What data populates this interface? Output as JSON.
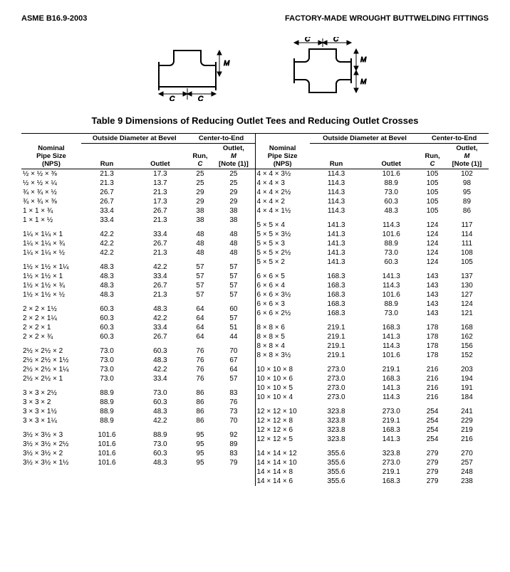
{
  "header": {
    "left": "ASME B16.9-2003",
    "right": "FACTORY-MADE WROUGHT BUTTWELDING FITTINGS"
  },
  "table_title": "Table 9   Dimensions of Reducing Outlet Tees and Reducing Outlet Crosses",
  "column_headers": {
    "nominal": "Nominal Pipe Size (NPS)",
    "od_group": "Outside Diameter at Bevel",
    "cte_group": "Center-to-End",
    "run_od": "Run",
    "outlet_od": "Outlet",
    "run_c": "Run, C",
    "outlet_m": "Outlet, M [Note (1)]"
  },
  "left_groups": [
    [
      {
        "nps": "½ × ½ × ⅜",
        "run": "21.3",
        "out": "17.3",
        "c": "25",
        "m": "25"
      },
      {
        "nps": "½ × ½ × ¼",
        "run": "21.3",
        "out": "13.7",
        "c": "25",
        "m": "25"
      },
      {
        "nps": "¾ × ¾ × ½",
        "run": "26.7",
        "out": "21.3",
        "c": "29",
        "m": "29"
      },
      {
        "nps": "¾ × ¾ × ⅜",
        "run": "26.7",
        "out": "17.3",
        "c": "29",
        "m": "29"
      },
      {
        "nps": "1 × 1 × ¾",
        "run": "33.4",
        "out": "26.7",
        "c": "38",
        "m": "38"
      },
      {
        "nps": "1 × 1 × ½",
        "run": "33.4",
        "out": "21.3",
        "c": "38",
        "m": "38"
      }
    ],
    [
      {
        "nps": "1¼ × 1¼ × 1",
        "run": "42.2",
        "out": "33.4",
        "c": "48",
        "m": "48"
      },
      {
        "nps": "1¼ × 1¼ × ¾",
        "run": "42.2",
        "out": "26.7",
        "c": "48",
        "m": "48"
      },
      {
        "nps": "1¼ × 1¼ × ½",
        "run": "42.2",
        "out": "21.3",
        "c": "48",
        "m": "48"
      }
    ],
    [
      {
        "nps": "1½ × 1½ × 1¼",
        "run": "48.3",
        "out": "42.2",
        "c": "57",
        "m": "57"
      },
      {
        "nps": "1½ × 1½ × 1",
        "run": "48.3",
        "out": "33.4",
        "c": "57",
        "m": "57"
      },
      {
        "nps": "1½ × 1½ × ¾",
        "run": "48.3",
        "out": "26.7",
        "c": "57",
        "m": "57"
      },
      {
        "nps": "1½ × 1½ × ½",
        "run": "48.3",
        "out": "21.3",
        "c": "57",
        "m": "57"
      }
    ],
    [
      {
        "nps": "2 × 2 × 1½",
        "run": "60.3",
        "out": "48.3",
        "c": "64",
        "m": "60"
      },
      {
        "nps": "2 × 2 × 1¼",
        "run": "60.3",
        "out": "42.2",
        "c": "64",
        "m": "57"
      },
      {
        "nps": "2 × 2 × 1",
        "run": "60.3",
        "out": "33.4",
        "c": "64",
        "m": "51"
      },
      {
        "nps": "2 × 2 × ¾",
        "run": "60.3",
        "out": "26.7",
        "c": "64",
        "m": "44"
      }
    ],
    [
      {
        "nps": "2½ × 2½ × 2",
        "run": "73.0",
        "out": "60.3",
        "c": "76",
        "m": "70"
      },
      {
        "nps": "2½ × 2½ × 1½",
        "run": "73.0",
        "out": "48.3",
        "c": "76",
        "m": "67"
      },
      {
        "nps": "2½ × 2½ × 1¼",
        "run": "73.0",
        "out": "42.2",
        "c": "76",
        "m": "64"
      },
      {
        "nps": "2½ × 2½ × 1",
        "run": "73.0",
        "out": "33.4",
        "c": "76",
        "m": "57"
      }
    ],
    [
      {
        "nps": "3 × 3 × 2½",
        "run": "88.9",
        "out": "73.0",
        "c": "86",
        "m": "83"
      },
      {
        "nps": "3 × 3 × 2",
        "run": "88.9",
        "out": "60.3",
        "c": "86",
        "m": "76"
      },
      {
        "nps": "3 × 3 × 1½",
        "run": "88.9",
        "out": "48.3",
        "c": "86",
        "m": "73"
      },
      {
        "nps": "3 × 3 × 1¼",
        "run": "88.9",
        "out": "42.2",
        "c": "86",
        "m": "70"
      }
    ],
    [
      {
        "nps": "3½ × 3½ × 3",
        "run": "101.6",
        "out": "88.9",
        "c": "95",
        "m": "92"
      },
      {
        "nps": "3½ × 3½ × 2½",
        "run": "101.6",
        "out": "73.0",
        "c": "95",
        "m": "89"
      },
      {
        "nps": "3½ × 3½ × 2",
        "run": "101.6",
        "out": "60.3",
        "c": "95",
        "m": "83"
      },
      {
        "nps": "3½ × 3½ × 1½",
        "run": "101.6",
        "out": "48.3",
        "c": "95",
        "m": "79"
      }
    ]
  ],
  "right_groups": [
    [
      {
        "nps": "4 × 4 × 3½",
        "run": "114.3",
        "out": "101.6",
        "c": "105",
        "m": "102"
      },
      {
        "nps": "4 × 4 × 3",
        "run": "114.3",
        "out": "88.9",
        "c": "105",
        "m": "98"
      },
      {
        "nps": "4 × 4 × 2½",
        "run": "114.3",
        "out": "73.0",
        "c": "105",
        "m": "95"
      },
      {
        "nps": "4 × 4 × 2",
        "run": "114.3",
        "out": "60.3",
        "c": "105",
        "m": "89"
      },
      {
        "nps": "4 × 4 × 1½",
        "run": "114.3",
        "out": "48.3",
        "c": "105",
        "m": "86"
      }
    ],
    [
      {
        "nps": "5 × 5 × 4",
        "run": "141.3",
        "out": "114.3",
        "c": "124",
        "m": "117"
      },
      {
        "nps": "5 × 5 × 3½",
        "run": "141.3",
        "out": "101.6",
        "c": "124",
        "m": "114"
      },
      {
        "nps": "5 × 5 × 3",
        "run": "141.3",
        "out": "88.9",
        "c": "124",
        "m": "111"
      },
      {
        "nps": "5 × 5 × 2½",
        "run": "141.3",
        "out": "73.0",
        "c": "124",
        "m": "108"
      },
      {
        "nps": "5 × 5 × 2",
        "run": "141.3",
        "out": "60.3",
        "c": "124",
        "m": "105"
      }
    ],
    [
      {
        "nps": "6 × 6 × 5",
        "run": "168.3",
        "out": "141.3",
        "c": "143",
        "m": "137"
      },
      {
        "nps": "6 × 6 × 4",
        "run": "168.3",
        "out": "114.3",
        "c": "143",
        "m": "130"
      },
      {
        "nps": "6 × 6 × 3½",
        "run": "168.3",
        "out": "101.6",
        "c": "143",
        "m": "127"
      },
      {
        "nps": "6 × 6 × 3",
        "run": "168.3",
        "out": "88.9",
        "c": "143",
        "m": "124"
      },
      {
        "nps": "6 × 6 × 2½",
        "run": "168.3",
        "out": "73.0",
        "c": "143",
        "m": "121"
      }
    ],
    [
      {
        "nps": "8 × 8 × 6",
        "run": "219.1",
        "out": "168.3",
        "c": "178",
        "m": "168"
      },
      {
        "nps": "8 × 8 × 5",
        "run": "219.1",
        "out": "141.3",
        "c": "178",
        "m": "162"
      },
      {
        "nps": "8 × 8 × 4",
        "run": "219.1",
        "out": "114.3",
        "c": "178",
        "m": "156"
      },
      {
        "nps": "8 × 8 × 3½",
        "run": "219.1",
        "out": "101.6",
        "c": "178",
        "m": "152"
      }
    ],
    [
      {
        "nps": "10 × 10 × 8",
        "run": "273.0",
        "out": "219.1",
        "c": "216",
        "m": "203"
      },
      {
        "nps": "10 × 10 × 6",
        "run": "273.0",
        "out": "168.3",
        "c": "216",
        "m": "194"
      },
      {
        "nps": "10 × 10 × 5",
        "run": "273.0",
        "out": "141.3",
        "c": "216",
        "m": "191"
      },
      {
        "nps": "10 × 10 × 4",
        "run": "273.0",
        "out": "114.3",
        "c": "216",
        "m": "184"
      }
    ],
    [
      {
        "nps": "12 × 12 × 10",
        "run": "323.8",
        "out": "273.0",
        "c": "254",
        "m": "241"
      },
      {
        "nps": "12 × 12 × 8",
        "run": "323.8",
        "out": "219.1",
        "c": "254",
        "m": "229"
      },
      {
        "nps": "12 × 12 × 6",
        "run": "323.8",
        "out": "168.3",
        "c": "254",
        "m": "219"
      },
      {
        "nps": "12 × 12 × 5",
        "run": "323.8",
        "out": "141.3",
        "c": "254",
        "m": "216"
      }
    ],
    [
      {
        "nps": "14 × 14 × 12",
        "run": "355.6",
        "out": "323.8",
        "c": "279",
        "m": "270"
      },
      {
        "nps": "14 × 14 × 10",
        "run": "355.6",
        "out": "273.0",
        "c": "279",
        "m": "257"
      },
      {
        "nps": "14 × 14 × 8",
        "run": "355.6",
        "out": "219.1",
        "c": "279",
        "m": "248"
      },
      {
        "nps": "14 × 14 × 6",
        "run": "355.6",
        "out": "168.3",
        "c": "279",
        "m": "238"
      }
    ]
  ]
}
